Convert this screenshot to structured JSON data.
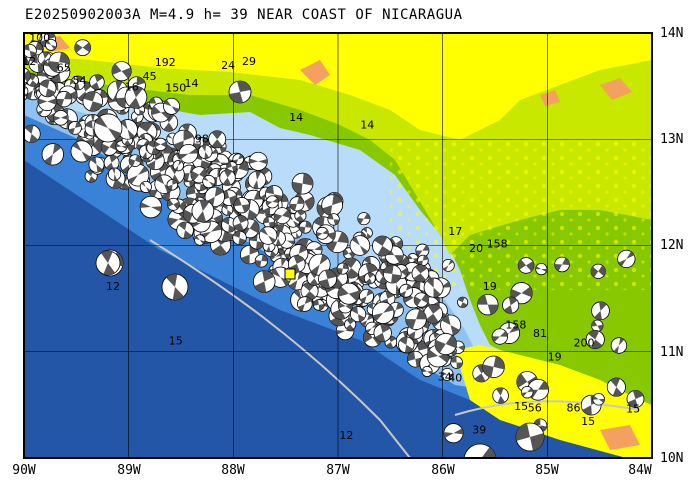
{
  "title": "E20250902003A M=4.9 h= 39 NEAR COAST OF NICARAGUA",
  "x_ticks": [
    "90W",
    "89W",
    "88W",
    "87W",
    "86W",
    "85W",
    "84W"
  ],
  "y_ticks": [
    "14N",
    "13N",
    "12N",
    "11N",
    "10N"
  ],
  "lon_range": [
    -90,
    -84
  ],
  "lat_range": [
    10,
    14
  ],
  "grid": true,
  "colors": {
    "ocean_deep": "#2456a8",
    "ocean_mid": "#3a82d8",
    "ocean_shelf": "#8ec2f2",
    "ocean_shallow": "#b8dcfa",
    "land_low": "#88c800",
    "land_mid": "#c8e800",
    "land_high": "#ffff00",
    "land_peak": "#f4a060",
    "event_marker": "#ffff00",
    "beachball_dark": "#555555",
    "beachball_light": "#ffffff"
  },
  "depth_labels": [
    {
      "text": "100",
      "lon": -89.85,
      "lat": 13.92
    },
    {
      "text": "65",
      "lon": -89.62,
      "lat": 13.64
    },
    {
      "text": "54",
      "lon": -89.47,
      "lat": 13.52
    },
    {
      "text": "12",
      "lon": -89.95,
      "lat": 13.7
    },
    {
      "text": "192",
      "lon": -88.65,
      "lat": 13.69
    },
    {
      "text": "45",
      "lon": -88.8,
      "lat": 13.56
    },
    {
      "text": "150",
      "lon": -88.55,
      "lat": 13.45
    },
    {
      "text": "16",
      "lon": -88.97,
      "lat": 13.46
    },
    {
      "text": "24",
      "lon": -88.05,
      "lat": 13.66
    },
    {
      "text": "29",
      "lon": -87.85,
      "lat": 13.7
    },
    {
      "text": "14",
      "lon": -88.4,
      "lat": 13.49
    },
    {
      "text": "14",
      "lon": -86.72,
      "lat": 13.1
    },
    {
      "text": "14",
      "lon": -87.4,
      "lat": 13.17
    },
    {
      "text": "98",
      "lon": -88.3,
      "lat": 12.97
    },
    {
      "text": "17",
      "lon": -85.88,
      "lat": 12.1
    },
    {
      "text": "158",
      "lon": -85.48,
      "lat": 11.98
    },
    {
      "text": "20",
      "lon": -85.68,
      "lat": 11.94
    },
    {
      "text": "19",
      "lon": -85.55,
      "lat": 11.58
    },
    {
      "text": "158",
      "lon": -85.3,
      "lat": 11.22
    },
    {
      "text": "81",
      "lon": -85.07,
      "lat": 11.14
    },
    {
      "text": "200",
      "lon": -84.65,
      "lat": 11.05
    },
    {
      "text": "19",
      "lon": -84.93,
      "lat": 10.92
    },
    {
      "text": "34",
      "lon": -85.98,
      "lat": 10.73
    },
    {
      "text": "40",
      "lon": -85.88,
      "lat": 10.72
    },
    {
      "text": "15",
      "lon": -88.55,
      "lat": 11.07
    },
    {
      "text": "12",
      "lon": -89.15,
      "lat": 11.58
    },
    {
      "text": "15",
      "lon": -85.25,
      "lat": 10.45
    },
    {
      "text": "56",
      "lon": -85.12,
      "lat": 10.44
    },
    {
      "text": "86",
      "lon": -84.75,
      "lat": 10.44
    },
    {
      "text": "15",
      "lon": -84.61,
      "lat": 10.31
    },
    {
      "text": "39",
      "lon": -85.65,
      "lat": 10.23
    },
    {
      "text": "12",
      "lon": -86.92,
      "lat": 10.18
    },
    {
      "text": "15",
      "lon": -84.18,
      "lat": 10.43
    }
  ]
}
